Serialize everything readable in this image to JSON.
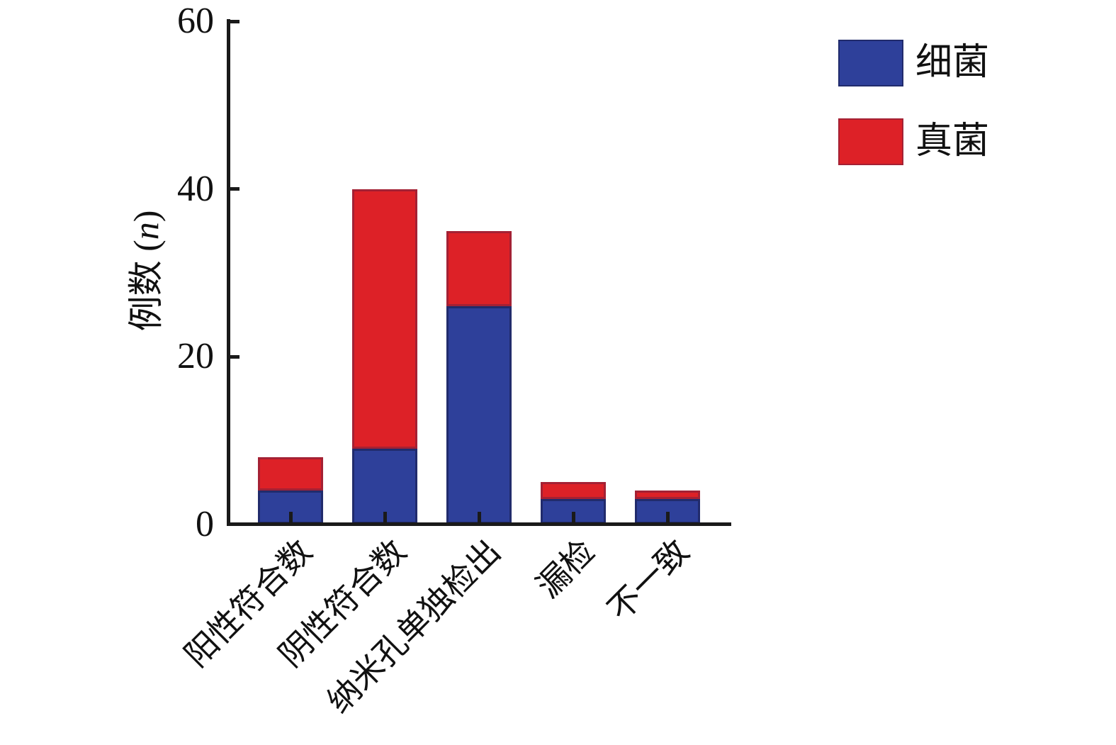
{
  "style": {
    "background": "#ffffff",
    "axis_color": "#1a1a1a",
    "text_color": "#111111"
  },
  "axes": {
    "ylabel_parts": [
      "例数 (",
      "n",
      ")"
    ]
  },
  "chart_data": {
    "type": "bar",
    "stacked": true,
    "title": "",
    "xlabel": "",
    "ylabel": "例数 (n)",
    "ylim": [
      0,
      60
    ],
    "yticks": [
      0,
      20,
      40,
      60
    ],
    "grid": false,
    "legend_position": "upper-right",
    "categories": [
      "阳性符合数",
      "阴性符合数",
      "纳米孔单独检出",
      "漏检",
      "不一致"
    ],
    "series": [
      {
        "name": "细菌",
        "color": "#2E409A",
        "outline": "#212B6C",
        "values": [
          4,
          9,
          26,
          3,
          3
        ]
      },
      {
        "name": "真菌",
        "color": "#DD2127",
        "outline": "#A42134",
        "values": [
          4,
          31,
          9,
          2,
          1
        ]
      }
    ],
    "totals": [
      8,
      40,
      35,
      5,
      4
    ]
  }
}
